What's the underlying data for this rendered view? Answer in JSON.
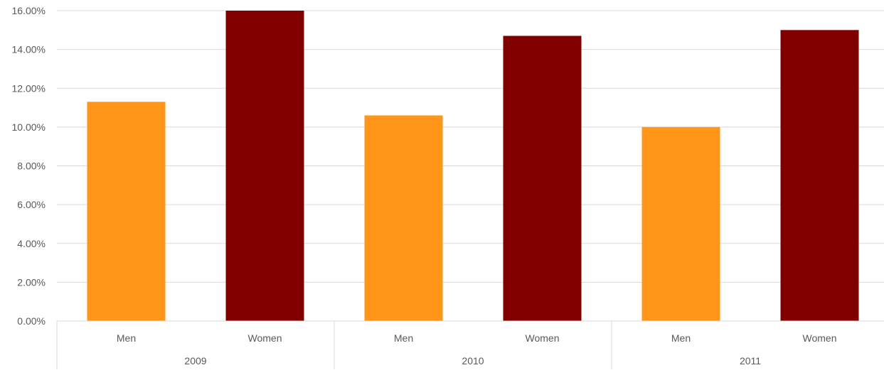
{
  "chart_data": {
    "type": "bar",
    "title": "",
    "xlabel": "",
    "ylabel": "",
    "ylim": [
      0,
      16
    ],
    "y_tick_step": 2,
    "y_tick_labels": [
      "0.00%",
      "2.00%",
      "4.00%",
      "6.00%",
      "8.00%",
      "10.00%",
      "12.00%",
      "14.00%",
      "16.00%"
    ],
    "grid": true,
    "legend": "none",
    "groups": [
      {
        "label": "2009",
        "bars": [
          {
            "category": "Men",
            "value": 11.3,
            "color": "#FF961A"
          },
          {
            "category": "Women",
            "value": 16.0,
            "color": "#800000"
          }
        ]
      },
      {
        "label": "2010",
        "bars": [
          {
            "category": "Men",
            "value": 10.6,
            "color": "#FF961A"
          },
          {
            "category": "Women",
            "value": 14.7,
            "color": "#800000"
          }
        ]
      },
      {
        "label": "2011",
        "bars": [
          {
            "category": "Men",
            "value": 10.0,
            "color": "#FF961A"
          },
          {
            "category": "Women",
            "value": 15.0,
            "color": "#800000"
          }
        ]
      }
    ]
  }
}
